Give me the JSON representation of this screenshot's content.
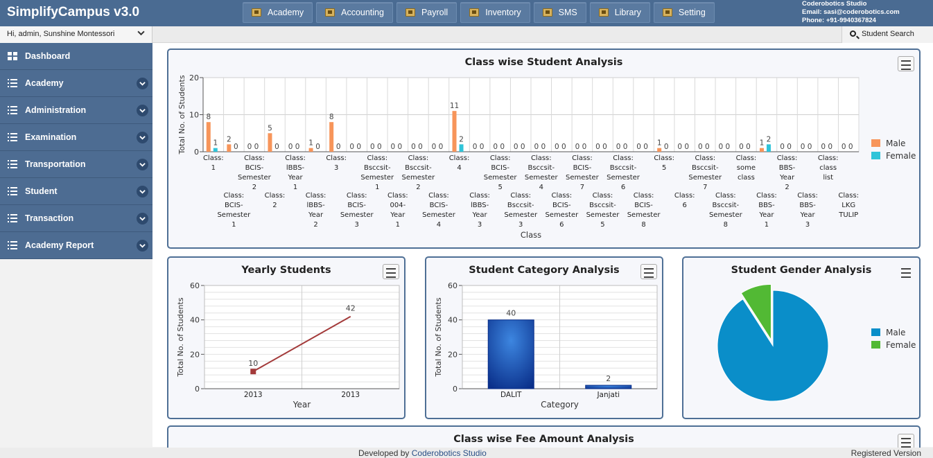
{
  "app": {
    "title": "SimplifyCampus v3.0"
  },
  "topnav": [
    {
      "label": "Academy"
    },
    {
      "label": "Accounting"
    },
    {
      "label": "Payroll"
    },
    {
      "label": "Inventory"
    },
    {
      "label": "SMS"
    },
    {
      "label": "Library"
    },
    {
      "label": "Setting"
    }
  ],
  "contact": {
    "company": "Coderobotics Studio",
    "email": "Email: sasi@coderobotics.com",
    "phone": "Phone: +91-9940367824"
  },
  "user": {
    "greeting": "Hi, admin, Sunshine Montessori"
  },
  "search": {
    "label": "Student Search"
  },
  "sidebar": {
    "items": [
      {
        "label": "Dashboard",
        "icon": "dashboard-grid-icon"
      },
      {
        "label": "Academy",
        "icon": "list-icon"
      },
      {
        "label": "Administration",
        "icon": "list-icon"
      },
      {
        "label": "Examination",
        "icon": "list-icon"
      },
      {
        "label": "Transportation",
        "icon": "list-icon"
      },
      {
        "label": "Student",
        "icon": "list-icon"
      },
      {
        "label": "Transaction",
        "icon": "list-icon"
      },
      {
        "label": "Academy Report",
        "icon": "list-icon"
      }
    ]
  },
  "chart_data": [
    {
      "type": "bar",
      "title": "Class wise Student Analysis",
      "xlabel": "Class",
      "ylabel": "Total No. of Students",
      "ylim": [
        0,
        20
      ],
      "yticks": [
        0,
        10,
        20
      ],
      "legend": "right",
      "categories": [
        [
          "Class:",
          "1"
        ],
        [
          "Class:",
          "BCIS-",
          "Semester",
          "1"
        ],
        [
          "Class:",
          "BCIS-",
          "Semester",
          "2"
        ],
        [
          "Class:",
          "2"
        ],
        [
          "Class:",
          "lBBS-",
          "Year",
          "1"
        ],
        [
          "Class:",
          "lBBS-",
          "Year",
          "2"
        ],
        [
          "Class:",
          "3"
        ],
        [
          "Class:",
          "BCIS-",
          "Semester",
          "3"
        ],
        [
          "Class:",
          "Bsccsit-",
          "Semester",
          "1"
        ],
        [
          "Class:",
          "004-",
          "Year",
          "1"
        ],
        [
          "Class:",
          "Bsccsit-",
          "Semester",
          "2"
        ],
        [
          "Class:",
          "BCIS-",
          "Semester",
          "4"
        ],
        [
          "Class:",
          "4"
        ],
        [
          "Class:",
          "lBBS-",
          "Year",
          "3"
        ],
        [
          "Class:",
          "BCIS-",
          "Semester",
          "5"
        ],
        [
          "Class:",
          "Bsccsit-",
          "Semester",
          "3"
        ],
        [
          "Class:",
          "Bsccsit-",
          "Semester",
          "4"
        ],
        [
          "Class:",
          "BCIS-",
          "Semester",
          "6"
        ],
        [
          "Class:",
          "BCIS-",
          "Semester",
          "7"
        ],
        [
          "Class:",
          "Bsccsit-",
          "Semester",
          "5"
        ],
        [
          "Class:",
          "Bsccsit-",
          "Semester",
          "6"
        ],
        [
          "Class:",
          "BCIS-",
          "Semester",
          "8"
        ],
        [
          "Class:",
          "5"
        ],
        [
          "Class:",
          "6"
        ],
        [
          "Class:",
          "Bsccsit-",
          "Semester",
          "7"
        ],
        [
          "Class:",
          "Bsccsit-",
          "Semester",
          "8"
        ],
        [
          "Class:",
          "some",
          "class"
        ],
        [
          "Class:",
          "BBS-",
          "Year",
          "1"
        ],
        [
          "Class:",
          "BBS-",
          "Year",
          "2"
        ],
        [
          "Class:",
          "BBS-",
          "Year",
          "3"
        ],
        [
          "Class:",
          "class",
          "list"
        ],
        [
          "Class:",
          "LKG",
          "TULIP"
        ]
      ],
      "series": [
        {
          "name": "Male",
          "color": "#f7955a",
          "values": [
            8,
            2,
            0,
            5,
            0,
            1,
            8,
            0,
            0,
            0,
            0,
            0,
            11,
            0,
            0,
            0,
            0,
            0,
            0,
            0,
            0,
            0,
            1,
            0,
            0,
            0,
            0,
            1,
            0,
            0,
            0,
            0
          ]
        },
        {
          "name": "Female",
          "color": "#30c4d9",
          "values": [
            1,
            0,
            0,
            0,
            0,
            0,
            0,
            0,
            0,
            0,
            0,
            0,
            2,
            0,
            0,
            0,
            0,
            0,
            0,
            0,
            0,
            0,
            0,
            0,
            0,
            0,
            0,
            2,
            0,
            0,
            0,
            0
          ]
        }
      ]
    },
    {
      "type": "line",
      "title": "Yearly Students",
      "xlabel": "Year",
      "ylabel": "Total No. of Students",
      "ylim": [
        0,
        60
      ],
      "yticks": [
        0,
        20,
        40,
        60
      ],
      "x": [
        "2013",
        "2013"
      ],
      "series": [
        {
          "color": "#a33a3a",
          "values": [
            10,
            42
          ]
        }
      ]
    },
    {
      "type": "bar",
      "title": "Student Category Analysis",
      "xlabel": "Category",
      "ylabel": "Total No. of Students",
      "ylim": [
        0,
        60
      ],
      "yticks": [
        0,
        20,
        40,
        60
      ],
      "categories": [
        "DALIT",
        "Janjati"
      ],
      "values": [
        40,
        2
      ],
      "color": "#1a4fb5"
    },
    {
      "type": "pie",
      "title": "Student Gender Analysis",
      "legend": "right",
      "slices": [
        {
          "name": "Male",
          "value": 40,
          "color": "#0a8ec9"
        },
        {
          "name": "Female",
          "value": 4,
          "color": "#52b934"
        }
      ]
    }
  ],
  "fee_panel": {
    "title": "Class wise Fee Amount Analysis"
  },
  "footer": {
    "developed_by": "Developed by",
    "company": "Coderobotics Studio",
    "registered": "Registered Version"
  }
}
